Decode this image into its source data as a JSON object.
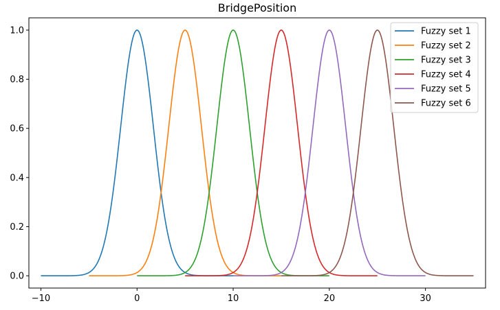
{
  "chart_data": {
    "type": "line",
    "title": "BridgePosition",
    "xlabel": "",
    "ylabel": "",
    "xlim": [
      -11.25,
      36.25
    ],
    "ylim": [
      -0.05,
      1.05
    ],
    "xticks": [
      -10,
      0,
      10,
      20,
      30
    ],
    "yticks": [
      0.0,
      0.2,
      0.4,
      0.6,
      0.8,
      1.0
    ],
    "xtick_labels": [
      "−10",
      "0",
      "10",
      "20",
      "30"
    ],
    "ytick_labels": [
      "0.0",
      "0.2",
      "0.4",
      "0.6",
      "0.8",
      "1.0"
    ],
    "grid": false,
    "legend_position": "top-right",
    "sigma": 1.7,
    "series": [
      {
        "name": "Fuzzy set 1",
        "color": "#1f77b4",
        "mean": 0,
        "x_range": [
          -10,
          10
        ]
      },
      {
        "name": "Fuzzy set 2",
        "color": "#ff7f0e",
        "mean": 5,
        "x_range": [
          -5,
          15
        ]
      },
      {
        "name": "Fuzzy set 3",
        "color": "#2ca02c",
        "mean": 10,
        "x_range": [
          0,
          20
        ]
      },
      {
        "name": "Fuzzy set 4",
        "color": "#d62728",
        "mean": 15,
        "x_range": [
          5,
          25
        ]
      },
      {
        "name": "Fuzzy set 5",
        "color": "#9467bd",
        "mean": 20,
        "x_range": [
          10,
          30
        ]
      },
      {
        "name": "Fuzzy set 6",
        "color": "#8c564b",
        "mean": 25,
        "x_range": [
          15,
          35
        ]
      }
    ]
  }
}
